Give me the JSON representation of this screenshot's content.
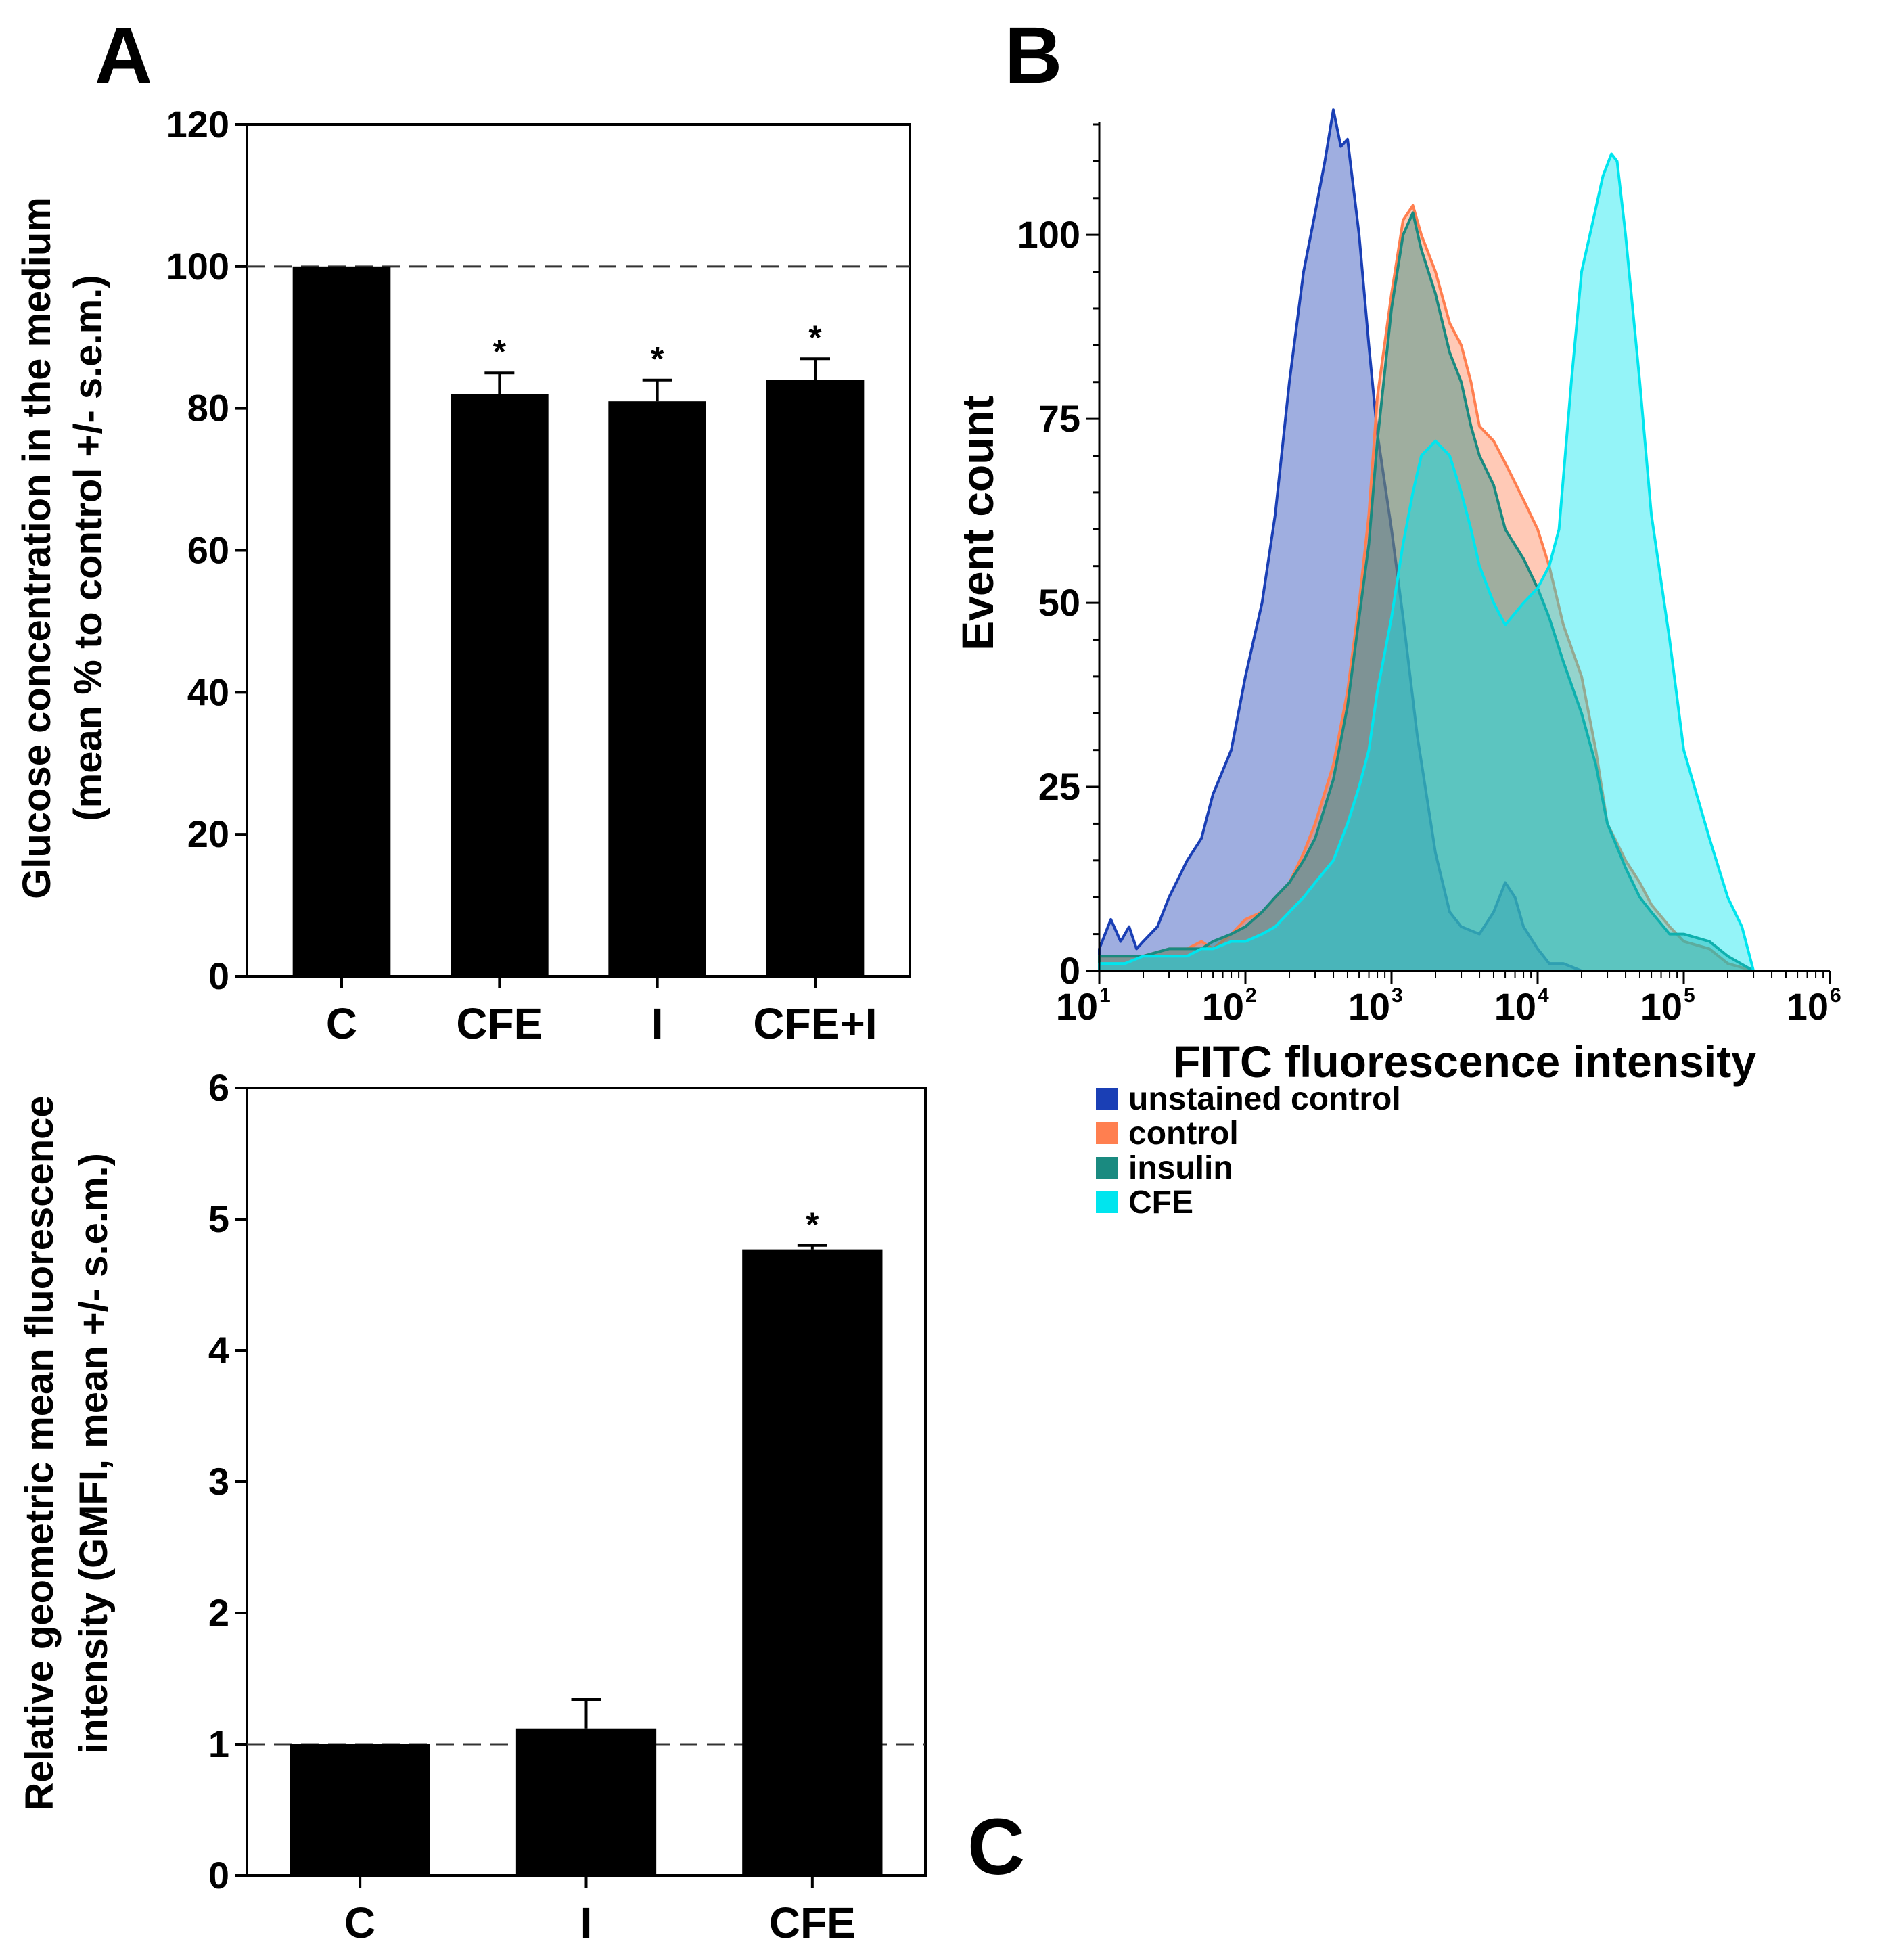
{
  "panel_letters": {
    "a": "A",
    "b": "B",
    "c": "C"
  },
  "chart_data": [
    {
      "id": "panel_A",
      "type": "bar",
      "categories": [
        "C",
        "CFE",
        "I",
        "CFE+I"
      ],
      "values": [
        100,
        82,
        81,
        84
      ],
      "errors": [
        0,
        3,
        3,
        3
      ],
      "significance": [
        "",
        "*",
        "*",
        "*"
      ],
      "ylabel_line1": "Glucose concentration in the medium",
      "ylabel_line2": "(mean % to control +/- s.e.m.)",
      "xlabel": "",
      "ylim": [
        0,
        120
      ],
      "yticks": [
        0,
        20,
        40,
        60,
        80,
        100,
        120
      ],
      "reference_line": 100,
      "bar_color": "#000000"
    },
    {
      "id": "panel_B",
      "type": "area",
      "xscale": "log",
      "xlim": [
        10,
        1000000
      ],
      "ylim": [
        0,
        115
      ],
      "yticks": [
        0,
        25,
        50,
        75,
        100
      ],
      "xtick_bases": [
        "10",
        "10",
        "10",
        "10",
        "10",
        "10"
      ],
      "xtick_exponents": [
        "1",
        "2",
        "3",
        "4",
        "5",
        "6"
      ],
      "xlabel": "FITC fluorescence intensity",
      "ylabel": "Event count",
      "legend_position": "below",
      "series": [
        {
          "name": "unstained control",
          "color": "#1a3fb5",
          "x": [
            10,
            12,
            14,
            16,
            18,
            20,
            25,
            30,
            40,
            50,
            60,
            80,
            100,
            130,
            160,
            200,
            250,
            300,
            350,
            400,
            450,
            500,
            600,
            700,
            800,
            1000,
            1200,
            1500,
            2000,
            2500,
            3000,
            4000,
            5000,
            6000,
            7000,
            8000,
            10000,
            12000,
            15000,
            20000,
            30000
          ],
          "values": [
            3,
            7,
            4,
            6,
            3,
            4,
            6,
            10,
            15,
            18,
            24,
            30,
            40,
            50,
            62,
            80,
            95,
            103,
            110,
            117,
            112,
            113,
            100,
            85,
            73,
            60,
            48,
            32,
            16,
            8,
            6,
            5,
            8,
            12,
            10,
            6,
            3,
            1,
            1,
            0,
            0
          ]
        },
        {
          "name": "control",
          "color": "#ff7f50",
          "x": [
            10,
            15,
            20,
            30,
            40,
            50,
            60,
            80,
            100,
            130,
            160,
            200,
            250,
            300,
            400,
            500,
            600,
            700,
            800,
            1000,
            1200,
            1400,
            1600,
            2000,
            2500,
            3000,
            3500,
            4000,
            5000,
            6000,
            8000,
            10000,
            12000,
            15000,
            20000,
            25000,
            30000,
            40000,
            50000,
            60000,
            80000,
            100000,
            150000,
            200000,
            300000
          ],
          "values": [
            2,
            2,
            2,
            3,
            3,
            4,
            3,
            5,
            7,
            8,
            10,
            12,
            16,
            20,
            28,
            38,
            50,
            62,
            78,
            92,
            102,
            104,
            100,
            95,
            88,
            85,
            80,
            74,
            72,
            69,
            64,
            60,
            55,
            47,
            40,
            30,
            20,
            15,
            12,
            9,
            6,
            4,
            3,
            1,
            0
          ]
        },
        {
          "name": "insulin",
          "color": "#1a8a80",
          "x": [
            10,
            15,
            20,
            30,
            40,
            50,
            60,
            80,
            100,
            130,
            160,
            200,
            250,
            300,
            400,
            500,
            600,
            700,
            800,
            1000,
            1200,
            1400,
            1600,
            2000,
            2500,
            3000,
            3500,
            4000,
            5000,
            6000,
            8000,
            10000,
            12000,
            15000,
            20000,
            25000,
            30000,
            40000,
            50000,
            60000,
            80000,
            100000,
            150000,
            200000,
            300000
          ],
          "values": [
            2,
            2,
            2,
            3,
            3,
            3,
            4,
            5,
            6,
            8,
            10,
            12,
            15,
            18,
            26,
            36,
            48,
            58,
            72,
            90,
            100,
            103,
            98,
            92,
            84,
            80,
            74,
            70,
            66,
            60,
            56,
            52,
            48,
            42,
            35,
            28,
            20,
            14,
            10,
            8,
            5,
            5,
            4,
            2,
            0
          ]
        },
        {
          "name": "CFE",
          "color": "#00e5ee",
          "x": [
            10,
            15,
            20,
            30,
            40,
            50,
            60,
            80,
            100,
            130,
            160,
            200,
            250,
            300,
            400,
            500,
            600,
            700,
            800,
            1000,
            1200,
            1400,
            1600,
            2000,
            2500,
            3000,
            3500,
            4000,
            5000,
            6000,
            8000,
            10000,
            12000,
            14000,
            17000,
            20000,
            24000,
            28000,
            32000,
            35000,
            40000,
            50000,
            60000,
            80000,
            100000,
            150000,
            200000,
            250000,
            300000
          ],
          "values": [
            1,
            1,
            2,
            2,
            2,
            3,
            3,
            4,
            4,
            5,
            6,
            8,
            10,
            12,
            15,
            20,
            25,
            30,
            38,
            48,
            58,
            65,
            70,
            72,
            70,
            65,
            60,
            55,
            50,
            47,
            50,
            52,
            55,
            60,
            80,
            95,
            102,
            108,
            111,
            110,
            100,
            80,
            62,
            45,
            30,
            18,
            10,
            6,
            0
          ]
        }
      ]
    },
    {
      "id": "panel_C",
      "type": "bar",
      "categories": [
        "C",
        "I",
        "CFE"
      ],
      "values": [
        1.0,
        1.12,
        4.77
      ],
      "errors": [
        0,
        0.22,
        0.03
      ],
      "significance": [
        "",
        "",
        "*"
      ],
      "ylabel_line1": "Relative geometric mean fluorescence",
      "ylabel_line2": "intensity (GMFI, mean +/- s.e.m.)",
      "xlabel": "",
      "ylim": [
        0,
        6
      ],
      "yticks": [
        0,
        1,
        2,
        3,
        4,
        5,
        6
      ],
      "reference_line": 1,
      "bar_color": "#000000"
    }
  ]
}
